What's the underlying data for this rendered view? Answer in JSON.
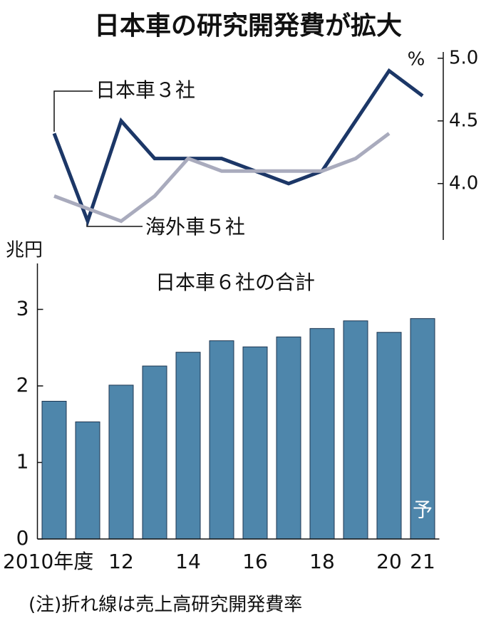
{
  "title": "日本車の研究開発費が拡大",
  "note": "(注)折れ線は売上高研究開発費率",
  "chart_data": [
    {
      "type": "line",
      "y_unit": "%",
      "axis_side": "right",
      "ylim": [
        3.55,
        5.05
      ],
      "yticks": [
        {
          "value": 4,
          "label": "4.0"
        },
        4.5,
        {
          "value": 5,
          "label": "5.0"
        }
      ],
      "series": [
        {
          "name": "日本車３社",
          "color": "#1c3767",
          "values": [
            4.4,
            3.7,
            4.5,
            4.2,
            4.2,
            4.2,
            4.1,
            4.0,
            4.1,
            4.5,
            4.9,
            4.7
          ]
        },
        {
          "name": "海外車５社",
          "color": "#a9abbd",
          "values": [
            3.9,
            3.8,
            3.7,
            3.9,
            4.2,
            4.1,
            4.1,
            4.1,
            4.1,
            4.2,
            4.4,
            null
          ]
        }
      ]
    },
    {
      "type": "bar",
      "title": "日本車６社の合計",
      "y_unit": "兆円",
      "color": "#4e86ab",
      "categories": [
        "2010年度",
        null,
        "12",
        null,
        "14",
        null,
        "16",
        null,
        "18",
        null,
        "20",
        "21"
      ],
      "values": [
        1.8,
        1.53,
        2.01,
        2.26,
        2.44,
        2.59,
        2.51,
        2.64,
        2.75,
        2.85,
        2.7,
        2.88
      ],
      "ylim": [
        0,
        3.6
      ],
      "yticks": [
        0,
        1,
        2,
        3
      ],
      "annotations": [
        "予"
      ]
    }
  ]
}
